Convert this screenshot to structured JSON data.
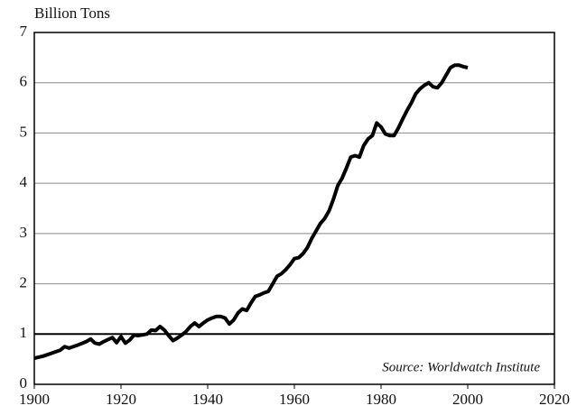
{
  "chart_data": {
    "type": "line",
    "y_axis_title": "Billion Tons",
    "annotation": "Source: Worldwatch Institute",
    "x": [
      1900,
      1902,
      1904,
      1906,
      1907,
      1908,
      1910,
      1912,
      1913,
      1914,
      1915,
      1916,
      1918,
      1919,
      1920,
      1921,
      1922,
      1923,
      1924,
      1926,
      1927,
      1928,
      1929,
      1930,
      1931,
      1932,
      1933,
      1934,
      1935,
      1936,
      1937,
      1938,
      1939,
      1940,
      1941,
      1942,
      1943,
      1944,
      1945,
      1946,
      1947,
      1948,
      1949,
      1950,
      1951,
      1952,
      1953,
      1954,
      1955,
      1956,
      1957,
      1958,
      1959,
      1960,
      1961,
      1962,
      1963,
      1964,
      1965,
      1966,
      1967,
      1968,
      1969,
      1970,
      1971,
      1972,
      1973,
      1974,
      1975,
      1976,
      1977,
      1978,
      1979,
      1980,
      1981,
      1982,
      1983,
      1984,
      1985,
      1986,
      1987,
      1988,
      1989,
      1990,
      1991,
      1992,
      1993,
      1994,
      1995,
      1996,
      1997,
      1998,
      1999,
      2000
    ],
    "series": [
      {
        "color": "#000000",
        "values": [
          0.52,
          0.56,
          0.62,
          0.68,
          0.75,
          0.72,
          0.78,
          0.85,
          0.9,
          0.82,
          0.8,
          0.85,
          0.93,
          0.83,
          0.95,
          0.82,
          0.88,
          0.98,
          0.97,
          1.0,
          1.08,
          1.07,
          1.15,
          1.08,
          0.97,
          0.87,
          0.92,
          0.98,
          1.05,
          1.15,
          1.22,
          1.15,
          1.22,
          1.28,
          1.32,
          1.35,
          1.35,
          1.32,
          1.2,
          1.28,
          1.42,
          1.5,
          1.47,
          1.62,
          1.75,
          1.78,
          1.82,
          1.85,
          2.0,
          2.15,
          2.2,
          2.28,
          2.38,
          2.5,
          2.52,
          2.6,
          2.72,
          2.9,
          3.05,
          3.2,
          3.3,
          3.45,
          3.68,
          3.95,
          4.1,
          4.3,
          4.52,
          4.55,
          4.52,
          4.75,
          4.88,
          4.95,
          5.2,
          5.12,
          4.98,
          4.95,
          4.95,
          5.1,
          5.28,
          5.45,
          5.6,
          5.78,
          5.88,
          5.95,
          6.0,
          5.92,
          5.9,
          6.0,
          6.15,
          6.3,
          6.35,
          6.35,
          6.32,
          6.3
        ]
      }
    ],
    "xlim": [
      1900,
      2020
    ],
    "xticks": [
      1900,
      1920,
      1940,
      1960,
      1980,
      2000,
      2020
    ],
    "ylim": [
      0,
      7
    ],
    "yticks": [
      0,
      1,
      2,
      3,
      4,
      5,
      6,
      7
    ],
    "grid": true
  }
}
